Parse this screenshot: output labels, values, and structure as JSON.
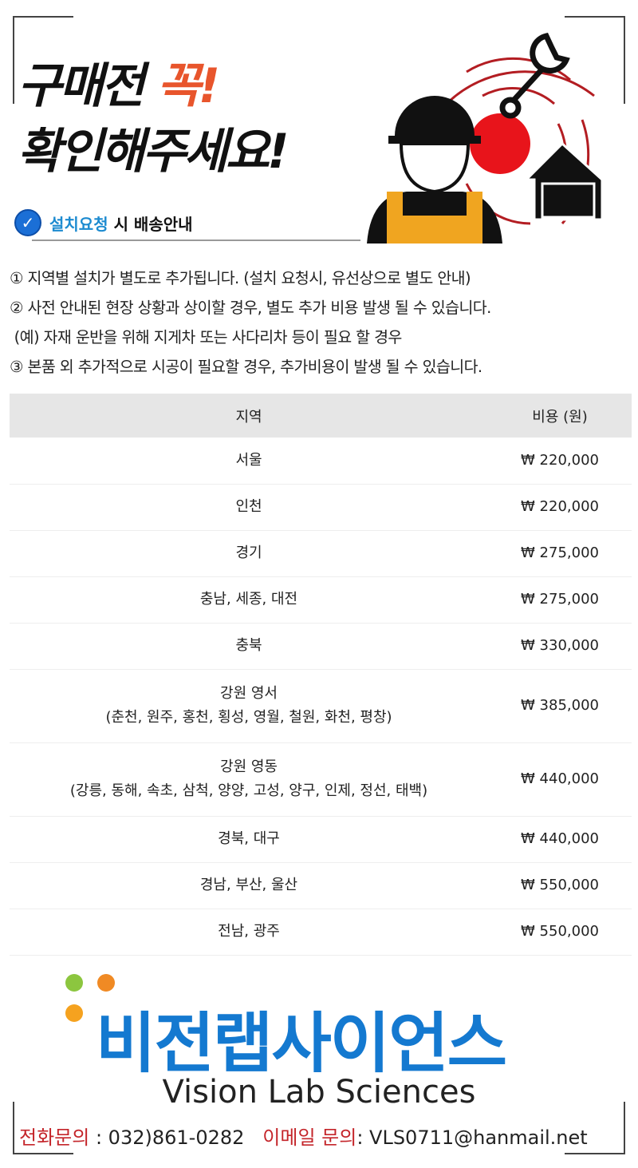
{
  "header": {
    "title_line1": "구매전",
    "title_accent": "꼭!",
    "title_line2": "확인해주세요!",
    "subtitle_highlight": "설치요청",
    "subtitle_rest": " 시 배송안내",
    "icon": "installer-worker-icon"
  },
  "notes": [
    "① 지역별 설치가 별도로 추가됩니다. (설치 요청시, 유선상으로 별도 안내)",
    "② 사전 안내된 현장 상황과 상이할 경우, 별도 추가 비용 발생 될 수 있습니다.",
    " (예) 자재 운반을 위해 지게차 또는 사다리차 등이 필요 할 경우",
    "③ 본품 외 추가적으로 시공이 필요할 경우, 추가비용이 발생 될 수 있습니다."
  ],
  "table": {
    "headers": [
      "지역",
      "비용 (원)"
    ],
    "rows": [
      {
        "region": "서울",
        "sub": "",
        "price": "₩ 220,000"
      },
      {
        "region": "인천",
        "sub": "",
        "price": "₩ 220,000"
      },
      {
        "region": "경기",
        "sub": "",
        "price": "₩ 275,000"
      },
      {
        "region": "충남, 세종, 대전",
        "sub": "",
        "price": "₩ 275,000"
      },
      {
        "region": "충북",
        "sub": "",
        "price": "₩ 330,000"
      },
      {
        "region": "강원 영서",
        "sub": "(춘천, 원주, 홍천, 횡성, 영월, 철원, 화천, 평창)",
        "price": "₩ 385,000"
      },
      {
        "region": "강원 영동",
        "sub": "(강릉, 동해, 속초, 삼척, 양양, 고성, 양구, 인제, 정선, 태백)",
        "price": "₩ 440,000"
      },
      {
        "region": "경북, 대구",
        "sub": "",
        "price": "₩ 440,000"
      },
      {
        "region": "경남, 부산, 울산",
        "sub": "",
        "price": "₩ 550,000"
      },
      {
        "region": "전남, 광주",
        "sub": "",
        "price": "₩ 550,000"
      }
    ]
  },
  "footer": {
    "logo_ko": "비전랩사이언스",
    "logo_en": "Vision Lab Sciences",
    "phone_label": "전화문의",
    "phone": " : 032)861-0282",
    "email_label": "이메일 문의",
    "email": ": VLS0711@hanmail.net"
  },
  "colors": {
    "accent": "#e8552c",
    "brand_blue": "#1479d0",
    "contact_red": "#c4252a"
  }
}
